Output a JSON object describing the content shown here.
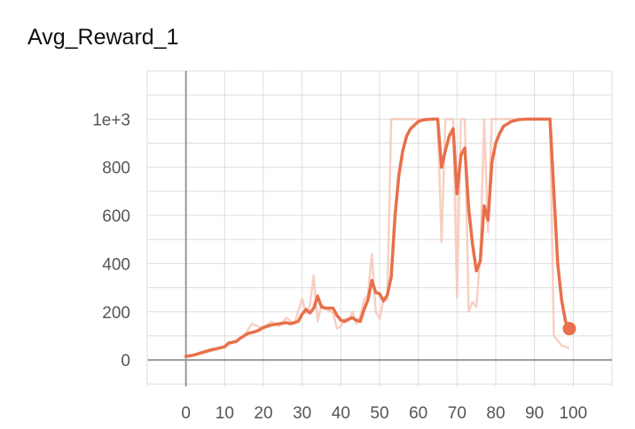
{
  "chart_data": {
    "type": "line",
    "title": "Avg_Reward_1",
    "xlabel": "",
    "ylabel": "",
    "xlim": [
      -10,
      110
    ],
    "ylim": [
      -110,
      1200
    ],
    "grid": true,
    "x_ticks": [
      0,
      10,
      20,
      30,
      40,
      50,
      60,
      70,
      80,
      90,
      100
    ],
    "y_ticks": [
      0,
      200,
      400,
      600,
      800,
      1000
    ],
    "x_tick_labels": [
      "0",
      "10",
      "20",
      "30",
      "40",
      "50",
      "60",
      "70",
      "80",
      "90",
      "100"
    ],
    "y_tick_labels": [
      "0",
      "200",
      "400",
      "600",
      "800",
      "1e+3"
    ],
    "colors": {
      "smoothed": "#e8704a",
      "raw": "#f6c4b4",
      "grid": "#dddddd",
      "axis": "#999999"
    },
    "series": [
      {
        "role": "smoothed",
        "x": [
          0,
          2,
          4,
          6,
          8,
          10,
          11,
          13,
          14,
          16,
          18,
          19,
          20,
          22,
          24,
          26,
          27,
          29,
          30,
          31,
          32,
          33,
          34,
          35,
          36,
          37,
          38,
          39,
          40,
          41,
          42,
          43,
          44,
          45,
          46,
          47,
          48,
          49,
          50,
          51,
          52,
          53,
          54,
          55,
          56,
          57,
          58,
          60,
          61,
          62,
          64,
          65,
          66,
          67,
          68,
          69,
          70,
          71,
          72,
          73,
          74,
          75,
          76,
          77,
          78,
          79,
          80,
          81,
          82,
          84,
          86,
          88,
          90,
          92,
          93,
          94,
          95,
          96,
          97,
          98,
          99
        ],
        "y": [
          15,
          20,
          30,
          40,
          47,
          55,
          70,
          77,
          90,
          110,
          118,
          125,
          135,
          145,
          150,
          155,
          150,
          160,
          190,
          210,
          195,
          215,
          265,
          220,
          215,
          215,
          215,
          185,
          165,
          160,
          170,
          175,
          165,
          160,
          210,
          250,
          330,
          280,
          275,
          245,
          270,
          345,
          600,
          770,
          870,
          930,
          960,
          990,
          995,
          998,
          1000,
          1000,
          800,
          870,
          930,
          960,
          690,
          850,
          880,
          630,
          480,
          370,
          410,
          640,
          580,
          820,
          900,
          940,
          970,
          990,
          998,
          1000,
          1000,
          1000,
          1000,
          1000,
          700,
          400,
          250,
          160,
          130
        ]
      },
      {
        "role": "raw",
        "x": [
          0,
          5,
          10,
          13,
          15,
          17,
          20,
          22,
          24,
          26,
          28,
          30,
          31,
          32,
          33,
          34,
          35,
          36,
          37,
          38,
          39,
          40,
          41,
          42,
          43,
          44,
          45,
          46,
          47,
          48,
          49,
          50,
          51,
          52,
          53,
          54,
          55,
          60,
          64,
          65,
          66,
          67,
          68,
          69,
          70,
          71,
          72,
          73,
          74,
          75,
          76,
          77,
          78,
          79,
          80,
          85,
          90,
          94,
          95,
          96,
          97,
          98,
          99
        ],
        "y": [
          15,
          30,
          55,
          80,
          100,
          150,
          130,
          160,
          140,
          175,
          150,
          255,
          195,
          225,
          350,
          160,
          230,
          215,
          205,
          195,
          130,
          140,
          170,
          160,
          200,
          150,
          180,
          250,
          270,
          440,
          200,
          170,
          250,
          250,
          1000,
          1000,
          1000,
          1000,
          1000,
          1000,
          490,
          1000,
          1000,
          1000,
          260,
          1000,
          1000,
          200,
          240,
          220,
          440,
          1000,
          530,
          1000,
          1000,
          1000,
          1000,
          1000,
          100,
          80,
          60,
          55,
          50
        ]
      }
    ],
    "final_point": {
      "x": 99,
      "y": 130
    }
  }
}
